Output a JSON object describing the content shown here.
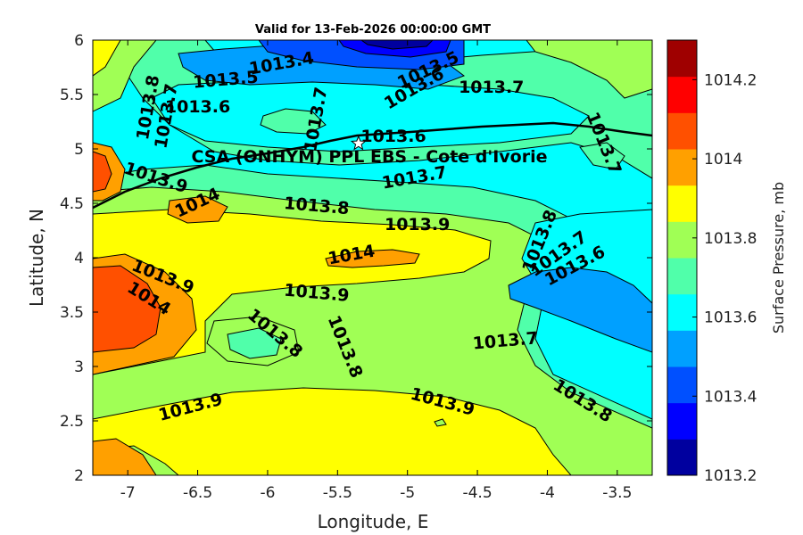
{
  "chart_data": {
    "type": "heatmap",
    "title": "Valid for 13-Feb-2026 00:00:00 GMT",
    "xlabel": "Longitude, E",
    "ylabel": "Latitude, N",
    "xlim": [
      -7.25,
      -3.25
    ],
    "ylim": [
      2,
      6
    ],
    "x_ticks": [
      -7,
      -6.5,
      -6,
      -5.5,
      -5,
      -4.5,
      -4,
      -3.5
    ],
    "y_ticks": [
      2,
      2.5,
      3,
      3.5,
      4,
      4.5,
      5,
      5.5,
      6
    ],
    "colorbar": {
      "label": "Surface Pressure, mb",
      "min": 1013.2,
      "max": 1014.3,
      "step": 0.1,
      "ticks": [
        1013.2,
        1013.4,
        1013.6,
        1013.8,
        1014,
        1014.2
      ],
      "colors": [
        "#00009f",
        "#0000ff",
        "#0050ff",
        "#00a0ff",
        "#00ffff",
        "#50ffaa",
        "#a0ff55",
        "#ffff00",
        "#ffa000",
        "#ff5000",
        "#ff0000",
        "#9f0000"
      ]
    },
    "annotation": {
      "text": "CSA (ONHYM) PPL EBS  - Cote d'Ivorie",
      "marker_lon": -5.35,
      "marker_lat": 5.05
    },
    "contour_labels": [
      {
        "text": "1013.4",
        "lon": -5.9,
        "lat": 5.78,
        "angle": -10
      },
      {
        "text": "1013.5",
        "lon": -6.3,
        "lat": 5.63,
        "angle": -5
      },
      {
        "text": "1013.5",
        "lon": -4.85,
        "lat": 5.72,
        "angle": -25
      },
      {
        "text": "1013.6",
        "lon": -4.95,
        "lat": 5.55,
        "angle": -30
      },
      {
        "text": "1013.6",
        "lon": -6.5,
        "lat": 5.38,
        "angle": 0
      },
      {
        "text": "1013.7",
        "lon": -4.4,
        "lat": 5.56,
        "angle": 0
      },
      {
        "text": "1013.8",
        "lon": -6.85,
        "lat": 5.38,
        "angle": -80
      },
      {
        "text": "1013.7",
        "lon": -6.72,
        "lat": 5.3,
        "angle": -80
      },
      {
        "text": "1013.7",
        "lon": -5.65,
        "lat": 5.27,
        "angle": -80
      },
      {
        "text": "1013.6",
        "lon": -5.1,
        "lat": 5.11,
        "angle": 0
      },
      {
        "text": "1013.7",
        "lon": -3.6,
        "lat": 5.05,
        "angle": 68
      },
      {
        "text": "1013.9",
        "lon": -6.8,
        "lat": 4.73,
        "angle": 18
      },
      {
        "text": "1014",
        "lon": -6.5,
        "lat": 4.5,
        "angle": -25
      },
      {
        "text": "1013.7",
        "lon": -4.95,
        "lat": 4.73,
        "angle": -10
      },
      {
        "text": "1013.8",
        "lon": -5.65,
        "lat": 4.47,
        "angle": 5
      },
      {
        "text": "1013.9",
        "lon": -4.93,
        "lat": 4.3,
        "angle": 0
      },
      {
        "text": "1013.8",
        "lon": -4.05,
        "lat": 4.15,
        "angle": -68
      },
      {
        "text": "1013.7",
        "lon": -3.92,
        "lat": 4.03,
        "angle": -35
      },
      {
        "text": "1013.6",
        "lon": -3.8,
        "lat": 3.92,
        "angle": -28
      },
      {
        "text": "1014",
        "lon": -5.4,
        "lat": 4.02,
        "angle": -10
      },
      {
        "text": "1013.9",
        "lon": -6.75,
        "lat": 3.82,
        "angle": 22
      },
      {
        "text": "1014",
        "lon": -6.85,
        "lat": 3.62,
        "angle": 32
      },
      {
        "text": "1013.9",
        "lon": -5.65,
        "lat": 3.67,
        "angle": 5
      },
      {
        "text": "1013.8",
        "lon": -5.95,
        "lat": 3.3,
        "angle": 40
      },
      {
        "text": "1013.8",
        "lon": -5.45,
        "lat": 3.18,
        "angle": 68
      },
      {
        "text": "1013.7",
        "lon": -4.3,
        "lat": 3.23,
        "angle": -5
      },
      {
        "text": "1013.9",
        "lon": -6.55,
        "lat": 2.62,
        "angle": -15
      },
      {
        "text": "1013.9",
        "lon": -4.75,
        "lat": 2.67,
        "angle": 15
      },
      {
        "text": "1013.8",
        "lon": -3.75,
        "lat": 2.68,
        "angle": 32
      }
    ]
  }
}
